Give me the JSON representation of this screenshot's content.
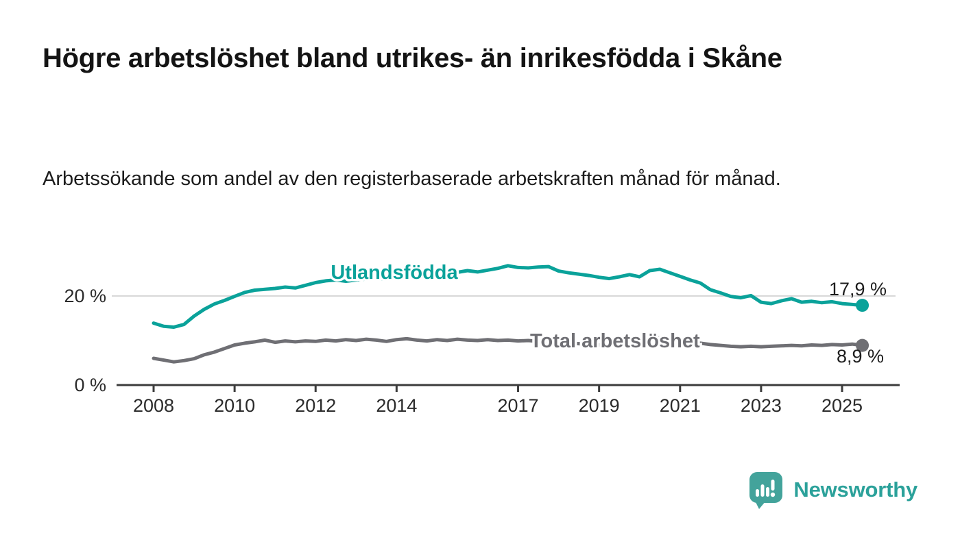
{
  "header": {
    "title": "Högre arbetslöshet bland utrikes- än inrikesfödda i Skåne",
    "subtitle": "Arbetssökande som andel av den registerbaserade arbetskraften månad för månad."
  },
  "footer": {
    "brand": "Newsworthy",
    "logo_icon": "speech-bubble-bar-chart-icon"
  },
  "colors": {
    "series_utlandsfodda": "#0aa29a",
    "series_total": "#6f6f74",
    "gridline": "#d8d8d8",
    "axis": "#3c3c3c",
    "tick_text": "#2b2b2b",
    "value_label_text": "#1d1d1d",
    "brand_teal": "#43a39b",
    "background": "#ffffff"
  },
  "chart_data": {
    "type": "line",
    "title": "Högre arbetslöshet bland utrikes- än inrikesfödda i Skåne",
    "subtitle": "Arbetssökande som andel av den registerbaserade arbetskraften månad för månad.",
    "unit": "%",
    "grid": "single horizontal gridline at 20 %",
    "legend_position": "inline series labels on lines",
    "x_tick_years": [
      2008,
      2010,
      2012,
      2014,
      2017,
      2019,
      2021,
      2023,
      2025
    ],
    "y_ticks": [
      {
        "value": 0,
        "label": "0 %"
      },
      {
        "value": 20,
        "label": "20 %",
        "gridline": true
      }
    ],
    "x_range": [
      2007.1,
      2026.4
    ],
    "y_range": [
      0,
      29.5
    ],
    "x": [
      2008,
      2008.25,
      2008.5,
      2008.75,
      2009,
      2009.25,
      2009.5,
      2009.75,
      2010,
      2010.25,
      2010.5,
      2010.75,
      2011,
      2011.25,
      2011.5,
      2011.75,
      2012,
      2012.25,
      2012.5,
      2012.75,
      2013,
      2013.25,
      2013.5,
      2013.75,
      2014,
      2014.25,
      2014.5,
      2014.75,
      2015,
      2015.25,
      2015.5,
      2015.75,
      2016,
      2016.25,
      2016.5,
      2016.75,
      2017,
      2017.25,
      2017.5,
      2017.75,
      2018,
      2018.25,
      2018.5,
      2018.75,
      2019,
      2019.25,
      2019.5,
      2019.75,
      2020,
      2020.25,
      2020.5,
      2020.75,
      2021,
      2021.25,
      2021.5,
      2021.75,
      2022,
      2022.25,
      2022.5,
      2022.75,
      2023,
      2023.25,
      2023.5,
      2023.75,
      2024,
      2024.25,
      2024.5,
      2024.75,
      2025,
      2025.25,
      2025.5
    ],
    "series": [
      {
        "name": "Utlandsfödda",
        "color_key": "series_utlandsfodda",
        "end_label": "17,9 %",
        "end_value": 17.9,
        "values": [
          13.9,
          13.2,
          13.0,
          13.6,
          15.5,
          17.0,
          18.2,
          19.0,
          19.9,
          20.8,
          21.3,
          21.5,
          21.7,
          22.0,
          21.8,
          22.4,
          23.0,
          23.4,
          23.6,
          23.3,
          23.6,
          23.8,
          24.0,
          23.7,
          24.1,
          24.3,
          24.1,
          24.4,
          24.6,
          24.8,
          25.3,
          25.7,
          25.4,
          25.8,
          26.2,
          26.8,
          26.4,
          26.3,
          26.5,
          26.6,
          25.6,
          25.2,
          24.9,
          24.6,
          24.2,
          23.9,
          24.3,
          24.8,
          24.3,
          25.7,
          26.0,
          25.2,
          24.4,
          23.6,
          22.9,
          21.4,
          20.7,
          19.9,
          19.6,
          20.1,
          18.6,
          18.3,
          18.9,
          19.4,
          18.6,
          18.8,
          18.5,
          18.7,
          18.3,
          18.1,
          17.9
        ]
      },
      {
        "name": "Total arbetslöshet",
        "color_key": "series_total",
        "end_label": "8,9 %",
        "end_value": 8.9,
        "values": [
          6.0,
          5.6,
          5.2,
          5.5,
          5.9,
          6.8,
          7.4,
          8.2,
          9.0,
          9.4,
          9.7,
          10.1,
          9.6,
          9.9,
          9.7,
          9.9,
          9.8,
          10.1,
          9.9,
          10.2,
          10.0,
          10.3,
          10.1,
          9.8,
          10.2,
          10.4,
          10.1,
          9.9,
          10.2,
          10.0,
          10.3,
          10.1,
          10.0,
          10.2,
          10.0,
          10.1,
          9.9,
          10.0,
          9.8,
          9.9,
          9.6,
          9.4,
          9.3,
          9.2,
          9.0,
          9.1,
          9.3,
          9.4,
          9.6,
          10.4,
          10.6,
          10.3,
          10.0,
          9.7,
          9.4,
          9.1,
          8.9,
          8.7,
          8.6,
          8.7,
          8.6,
          8.7,
          8.8,
          8.9,
          8.8,
          9.0,
          8.9,
          9.1,
          9.0,
          9.2,
          8.9
        ]
      }
    ]
  }
}
